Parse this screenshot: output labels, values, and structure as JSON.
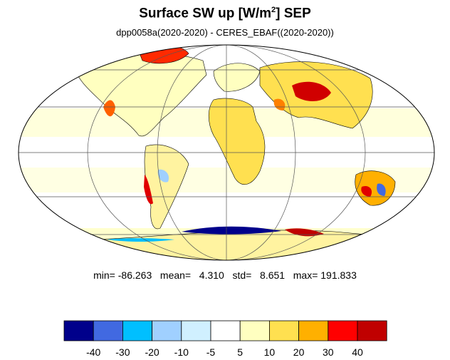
{
  "title_main": "Surface SW up [W/m",
  "title_sup": "2",
  "title_end": "]  SEP",
  "subtitle": "dpp0058a(2020-2020) - CERES_EBAF((2020-2020))",
  "stats": {
    "min_label": "min=",
    "min": "-86.263",
    "mean_label": "mean=",
    "mean": "4.310",
    "std_label": "std=",
    "std": "8.651",
    "max_label": "max=",
    "max": "191.833"
  },
  "colorbar": {
    "colors": [
      "#00008b",
      "#4169e1",
      "#00bfff",
      "#a0d0ff",
      "#d0f0ff",
      "#ffffff",
      "#ffffc0",
      "#ffe050",
      "#ffb000",
      "#ff0000",
      "#c00000"
    ],
    "labels": [
      "-40",
      "-30",
      "-20",
      "-10",
      "-5",
      "5",
      "10",
      "20",
      "30",
      "40"
    ]
  }
}
